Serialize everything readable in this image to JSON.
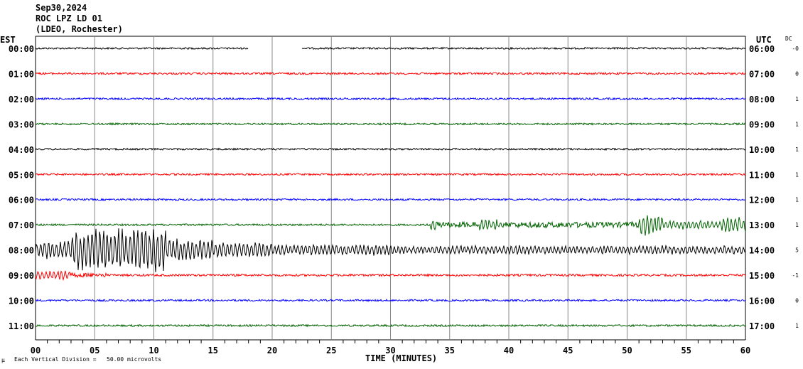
{
  "header": {
    "date": "Sep30,2024",
    "station": "ROC LPZ LD 01",
    "network": "(LDEO, Rochester)"
  },
  "left_axis_title": "EST",
  "right_axis_title": "UTC",
  "dc_title": "DC",
  "footer": {
    "mark": "μ",
    "scale_note": "Each Vertical Division =   50.00 microvolts"
  },
  "chart_data": {
    "type": "line",
    "title": "ROC LPZ LD 01 helicorder, Sep30,2024",
    "xlabel": "TIME (MINUTES)",
    "xlim": [
      0,
      60
    ],
    "x_ticks": [
      "00",
      "05",
      "10",
      "15",
      "20",
      "25",
      "30",
      "35",
      "40",
      "45",
      "50",
      "55",
      "60"
    ],
    "x_minor_step": 1,
    "grid": "vertical every 5 minutes",
    "rows": [
      {
        "est": "00:00",
        "utc": "06:00",
        "dc": "-0",
        "color": "#000000",
        "gaps": [
          [
            18.0,
            22.5
          ]
        ],
        "envelope": [
          [
            0,
            60,
            1.2
          ]
        ]
      },
      {
        "est": "01:00",
        "utc": "07:00",
        "dc": "0",
        "color": "#ff0000",
        "gaps": [],
        "envelope": [
          [
            0,
            60,
            1.4
          ]
        ]
      },
      {
        "est": "02:00",
        "utc": "08:00",
        "dc": "1",
        "color": "#0000ff",
        "gaps": [],
        "envelope": [
          [
            0,
            60,
            1.3
          ]
        ]
      },
      {
        "est": "03:00",
        "utc": "09:00",
        "dc": "1",
        "color": "#006400",
        "gaps": [],
        "envelope": [
          [
            0,
            60,
            1.3
          ]
        ]
      },
      {
        "est": "04:00",
        "utc": "10:00",
        "dc": "1",
        "color": "#000000",
        "gaps": [],
        "envelope": [
          [
            0,
            60,
            1.2
          ]
        ]
      },
      {
        "est": "05:00",
        "utc": "11:00",
        "dc": "1",
        "color": "#ff0000",
        "gaps": [],
        "envelope": [
          [
            0,
            60,
            1.3
          ]
        ]
      },
      {
        "est": "06:00",
        "utc": "12:00",
        "dc": "1",
        "color": "#0000ff",
        "gaps": [],
        "envelope": [
          [
            0,
            60,
            1.3
          ]
        ]
      },
      {
        "est": "07:00",
        "utc": "13:00",
        "dc": "1",
        "color": "#006400",
        "gaps": [],
        "envelope": [
          [
            0,
            33.3,
            1.3
          ],
          [
            33.3,
            34,
            9
          ],
          [
            34,
            37.5,
            4
          ],
          [
            37.5,
            39,
            8
          ],
          [
            39,
            51,
            4
          ],
          [
            51,
            53,
            15
          ],
          [
            53,
            58,
            6
          ],
          [
            58,
            60,
            11
          ]
        ]
      },
      {
        "est": "08:00",
        "utc": "14:00",
        "dc": "5",
        "color": "#000000",
        "gaps": [],
        "envelope": [
          [
            0,
            3,
            13
          ],
          [
            3,
            11,
            32
          ],
          [
            11,
            15,
            16
          ],
          [
            15,
            20,
            11
          ],
          [
            20,
            30,
            8
          ],
          [
            30,
            60,
            6
          ]
        ]
      },
      {
        "est": "09:00",
        "utc": "15:00",
        "dc": "-1",
        "color": "#ff0000",
        "gaps": [],
        "envelope": [
          [
            0,
            3,
            7
          ],
          [
            3,
            6,
            3
          ],
          [
            6,
            60,
            1.5
          ]
        ]
      },
      {
        "est": "10:00",
        "utc": "16:00",
        "dc": "0",
        "color": "#0000ff",
        "gaps": [],
        "envelope": [
          [
            0,
            60,
            1.3
          ]
        ]
      },
      {
        "est": "11:00",
        "utc": "17:00",
        "dc": "1",
        "color": "#006400",
        "gaps": [],
        "envelope": [
          [
            0,
            60,
            1.3
          ]
        ]
      }
    ]
  }
}
